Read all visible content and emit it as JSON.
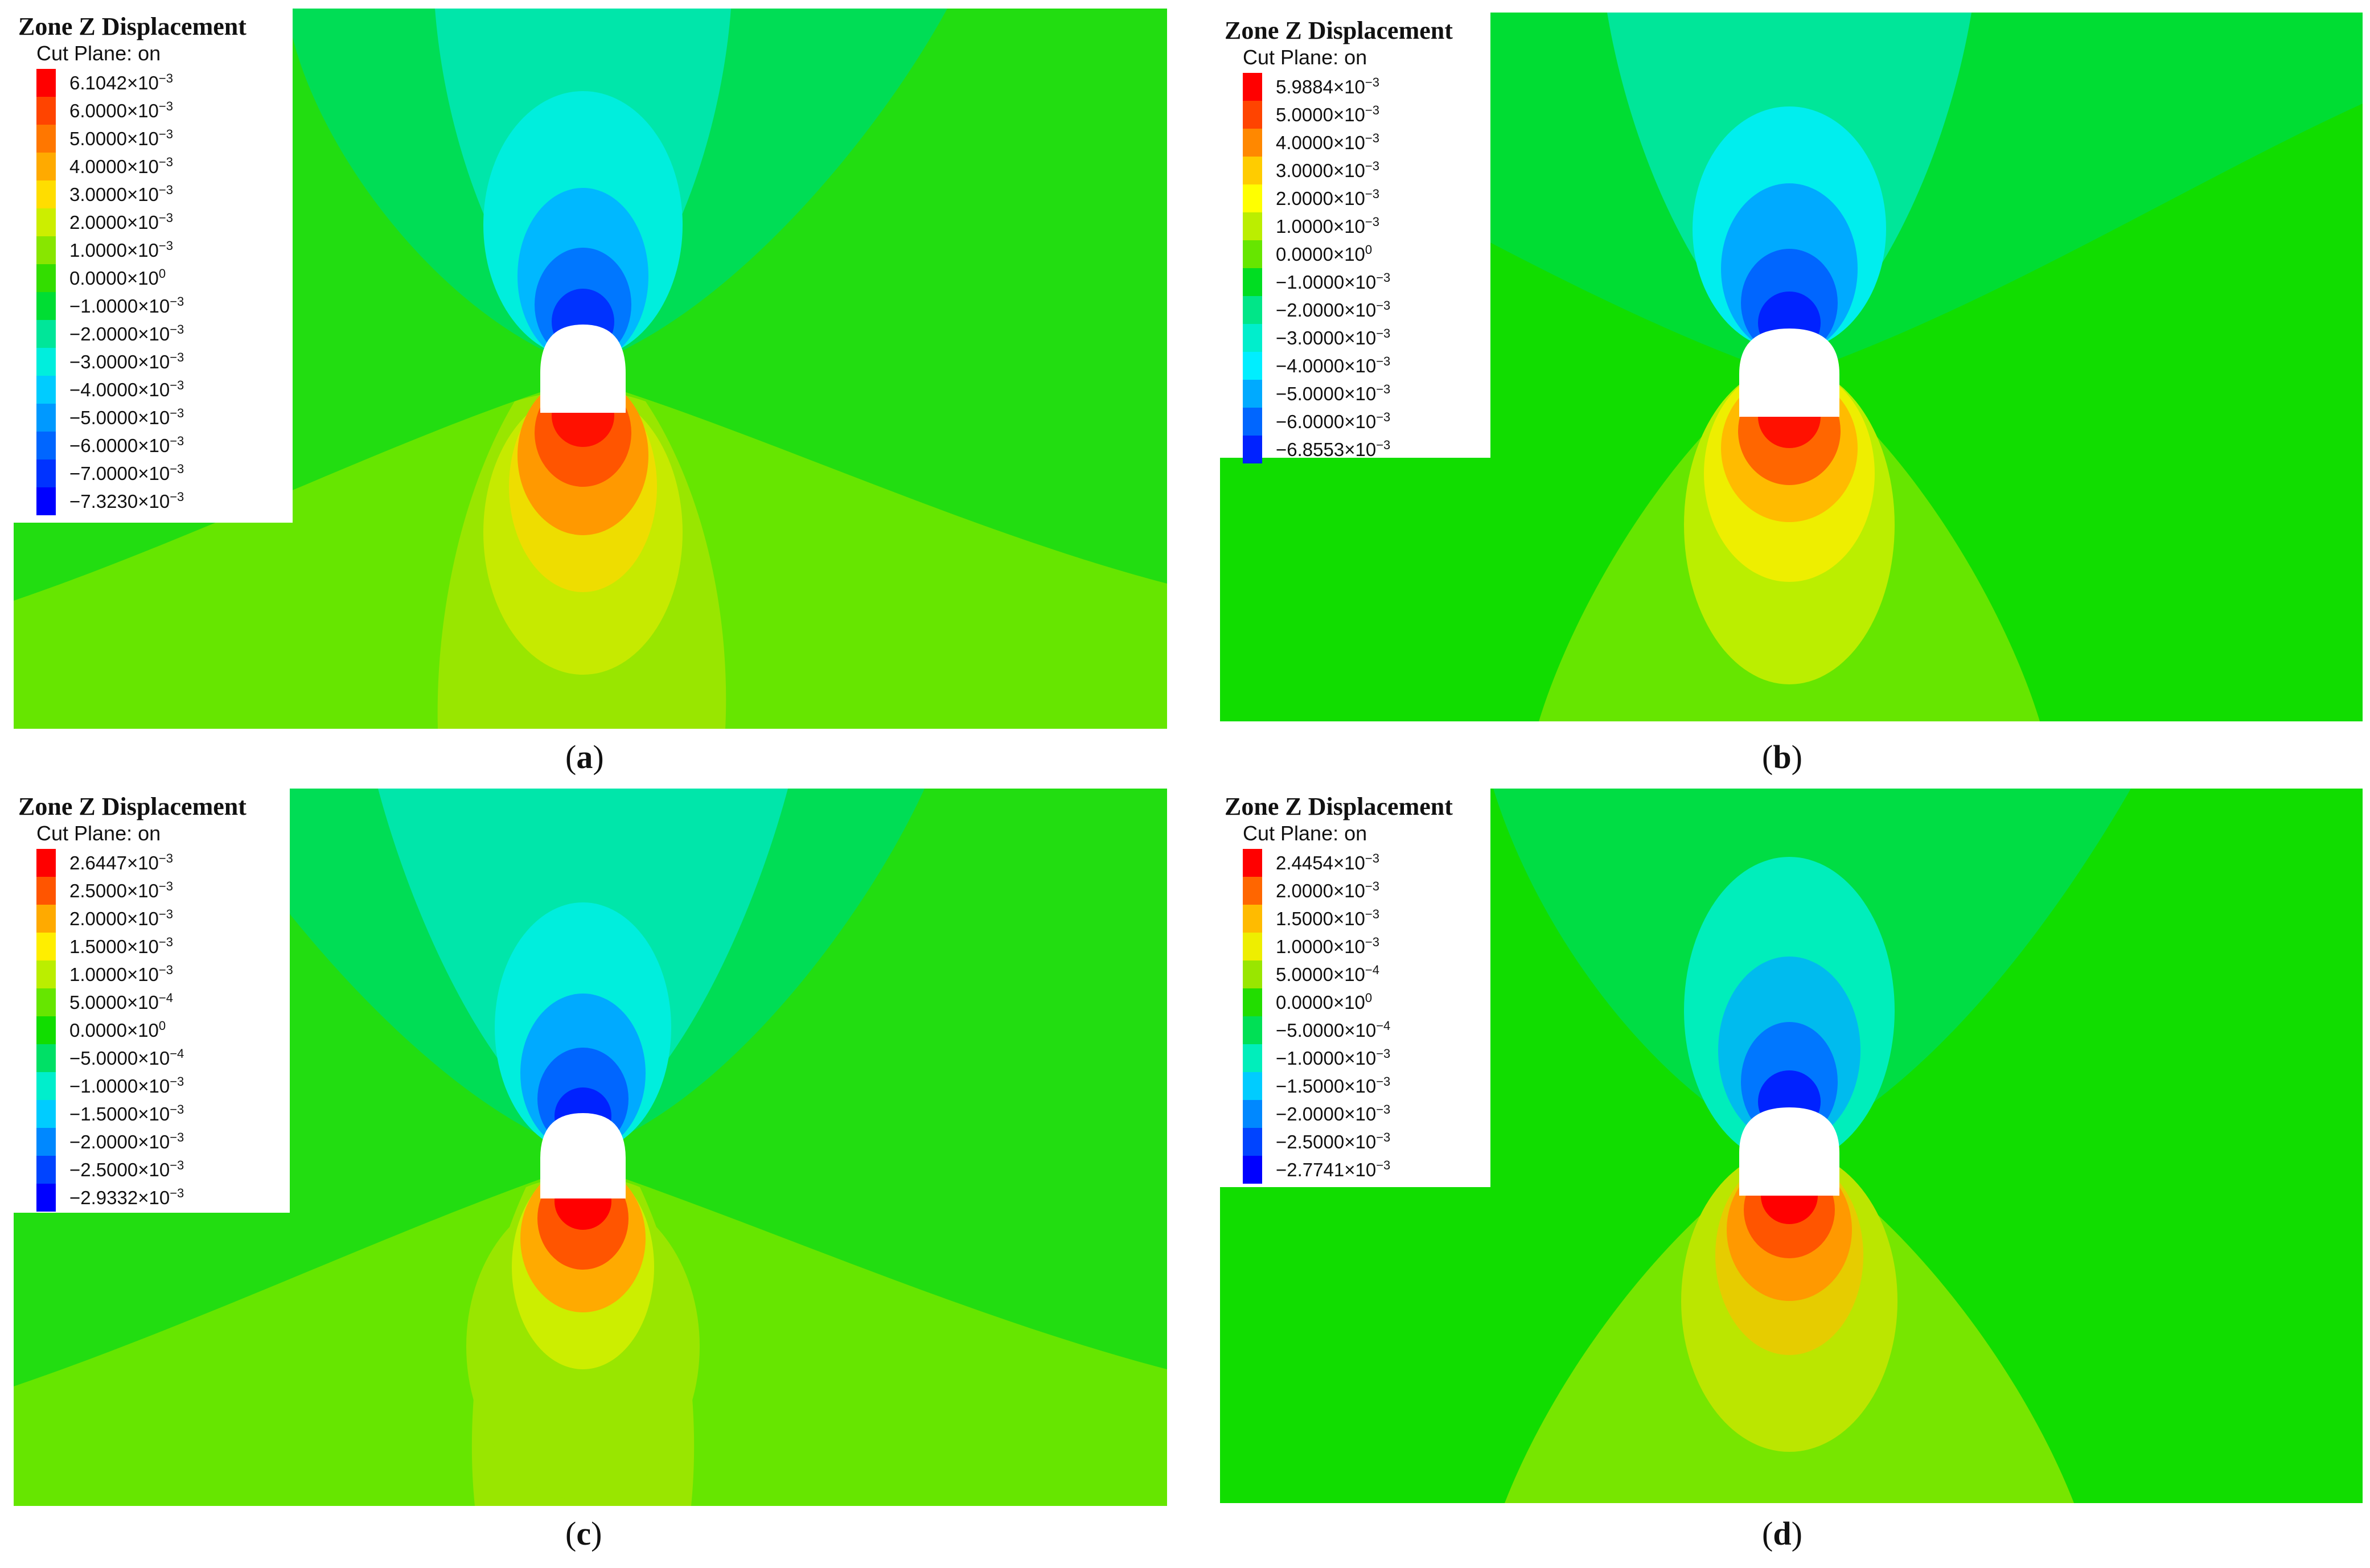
{
  "panels": [
    {
      "id": "a",
      "caption_letter": "a",
      "title": "Zone Z Displacement",
      "subtitle": "Cut Plane: on",
      "legend": [
        {
          "m": "6.1042",
          "e": "−3",
          "color": "#ff0000"
        },
        {
          "m": "6.0000",
          "e": "−3",
          "color": "#ff4400"
        },
        {
          "m": "5.0000",
          "e": "−3",
          "color": "#ff7700"
        },
        {
          "m": "4.0000",
          "e": "−3",
          "color": "#ffaa00"
        },
        {
          "m": "3.0000",
          "e": "−3",
          "color": "#ffdd00"
        },
        {
          "m": "2.0000",
          "e": "−3",
          "color": "#ccee00"
        },
        {
          "m": "1.0000",
          "e": "−3",
          "color": "#88e600"
        },
        {
          "m": "0.0000",
          "e": "0",
          "color": "#33dd00"
        },
        {
          "m": "−1.0000",
          "e": "−3",
          "color": "#00dd33"
        },
        {
          "m": "−2.0000",
          "e": "−3",
          "color": "#00e699"
        },
        {
          "m": "−3.0000",
          "e": "−3",
          "color": "#00eedd"
        },
        {
          "m": "−4.0000",
          "e": "−3",
          "color": "#00ccff"
        },
        {
          "m": "−5.0000",
          "e": "−3",
          "color": "#0099ff"
        },
        {
          "m": "−6.0000",
          "e": "−3",
          "color": "#0066ff"
        },
        {
          "m": "−7.0000",
          "e": "−3",
          "color": "#0033ff"
        },
        {
          "m": "−7.3230",
          "e": "−3",
          "color": "#0000ff"
        }
      ]
    },
    {
      "id": "b",
      "caption_letter": "b",
      "title": "Zone Z Displacement",
      "subtitle": "Cut Plane: on",
      "legend": [
        {
          "m": "5.9884",
          "e": "−3",
          "color": "#ff0000"
        },
        {
          "m": "5.0000",
          "e": "−3",
          "color": "#ff4400"
        },
        {
          "m": "4.0000",
          "e": "−3",
          "color": "#ff8800"
        },
        {
          "m": "3.0000",
          "e": "−3",
          "color": "#ffcc00"
        },
        {
          "m": "2.0000",
          "e": "−3",
          "color": "#ffff00"
        },
        {
          "m": "1.0000",
          "e": "−3",
          "color": "#bbee00"
        },
        {
          "m": "0.0000",
          "e": "0",
          "color": "#66e600"
        },
        {
          "m": "−1.0000",
          "e": "−3",
          "color": "#00dd22"
        },
        {
          "m": "−2.0000",
          "e": "−3",
          "color": "#00e688"
        },
        {
          "m": "−3.0000",
          "e": "−3",
          "color": "#00eecc"
        },
        {
          "m": "−4.0000",
          "e": "−3",
          "color": "#00eeff"
        },
        {
          "m": "−5.0000",
          "e": "−3",
          "color": "#00aaff"
        },
        {
          "m": "−6.0000",
          "e": "−3",
          "color": "#0066ff"
        },
        {
          "m": "−6.8553",
          "e": "−3",
          "color": "#0022ff"
        }
      ]
    },
    {
      "id": "c",
      "caption_letter": "c",
      "title": "Zone Z Displacement",
      "subtitle": "Cut Plane: on",
      "legend": [
        {
          "m": "2.6447",
          "e": "−3",
          "color": "#ff0000"
        },
        {
          "m": "2.5000",
          "e": "−3",
          "color": "#ff5500"
        },
        {
          "m": "2.0000",
          "e": "−3",
          "color": "#ffaa00"
        },
        {
          "m": "1.5000",
          "e": "−3",
          "color": "#ffee00"
        },
        {
          "m": "1.0000",
          "e": "−3",
          "color": "#bbee00"
        },
        {
          "m": "5.0000",
          "e": "−4",
          "color": "#66e600"
        },
        {
          "m": "0.0000",
          "e": "0",
          "color": "#11dd00"
        },
        {
          "m": "−5.0000",
          "e": "−4",
          "color": "#00e066"
        },
        {
          "m": "−1.0000",
          "e": "−3",
          "color": "#00eecc"
        },
        {
          "m": "−1.5000",
          "e": "−3",
          "color": "#00ccff"
        },
        {
          "m": "−2.0000",
          "e": "−3",
          "color": "#0088ff"
        },
        {
          "m": "−2.5000",
          "e": "−3",
          "color": "#0044ff"
        },
        {
          "m": "−2.9332",
          "e": "−3",
          "color": "#0000ff"
        }
      ]
    },
    {
      "id": "d",
      "caption_letter": "d",
      "title": "Zone Z Displacement",
      "subtitle": "Cut Plane: on",
      "legend": [
        {
          "m": "2.4454",
          "e": "−3",
          "color": "#ff0000"
        },
        {
          "m": "2.0000",
          "e": "−3",
          "color": "#ff6600"
        },
        {
          "m": "1.5000",
          "e": "−3",
          "color": "#ffbb00"
        },
        {
          "m": "1.0000",
          "e": "−3",
          "color": "#eeee00"
        },
        {
          "m": "5.0000",
          "e": "−4",
          "color": "#99e600"
        },
        {
          "m": "0.0000",
          "e": "0",
          "color": "#22dd00"
        },
        {
          "m": "−5.0000",
          "e": "−4",
          "color": "#00e055"
        },
        {
          "m": "−1.0000",
          "e": "−3",
          "color": "#00eebb"
        },
        {
          "m": "−1.5000",
          "e": "−3",
          "color": "#00ccff"
        },
        {
          "m": "−2.0000",
          "e": "−3",
          "color": "#0088ff"
        },
        {
          "m": "−2.5000",
          "e": "−3",
          "color": "#0044ff"
        },
        {
          "m": "−2.7741",
          "e": "−3",
          "color": "#0000ff"
        }
      ]
    }
  ]
}
